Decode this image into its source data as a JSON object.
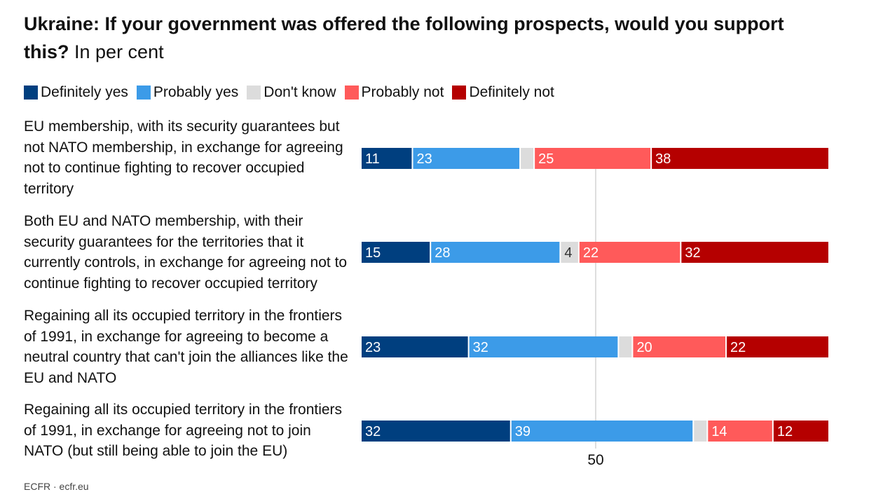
{
  "title": {
    "bold": "Ukraine: If your government was offered the following prospects, would you support this?",
    "regular": "In per cent"
  },
  "colors": {
    "definitely_yes": "#003f7f",
    "probably_yes": "#3c9be8",
    "dont_know": "#dcdcdc",
    "probably_not": "#ff5a5a",
    "definitely_not": "#b50000"
  },
  "footer": "ECFR · ecfr.eu",
  "chart_data": {
    "type": "bar",
    "orientation": "horizontal",
    "stacked": true,
    "title": "Ukraine: If your government was offered the following prospects, would you support this? In per cent",
    "categories": [
      "EU membership, with its security guarantees but not NATO membership, in exchange for agreeing not to continue fighting to recover occupied territory",
      "Both EU and NATO membership, with their security guarantees for the territories that it currently controls, in exchange for agreeing not to continue fighting to recover occupied territory",
      "Regaining all its occupied territory in the frontiers of 1991, in exchange for agreeing to become a neutral country that can't join the alliances like the EU and NATO",
      "Regaining all its occupied territory in the frontiers of 1991, in exchange for agreeing not to join NATO (but still being able to join the EU)"
    ],
    "series": [
      {
        "name": "Definitely yes",
        "color": "#003f7f",
        "text_color": "#ffffff",
        "values": [
          11,
          15,
          23,
          32
        ]
      },
      {
        "name": "Probably yes",
        "color": "#3c9be8",
        "text_color": "#ffffff",
        "values": [
          23,
          28,
          32,
          39
        ]
      },
      {
        "name": "Don't know",
        "color": "#dcdcdc",
        "text_color": "#333333",
        "values": [
          3,
          4,
          3,
          3
        ]
      },
      {
        "name": "Probably not",
        "color": "#ff5a5a",
        "text_color": "#ffffff",
        "values": [
          25,
          22,
          20,
          14
        ]
      },
      {
        "name": "Definitely not",
        "color": "#b50000",
        "text_color": "#ffffff",
        "values": [
          38,
          32,
          22,
          12
        ]
      }
    ],
    "show_label_min": 4,
    "xlim": [
      0,
      100
    ],
    "reference_line": 50,
    "ticks": [
      50
    ],
    "legend_position": "top",
    "grid": false
  }
}
